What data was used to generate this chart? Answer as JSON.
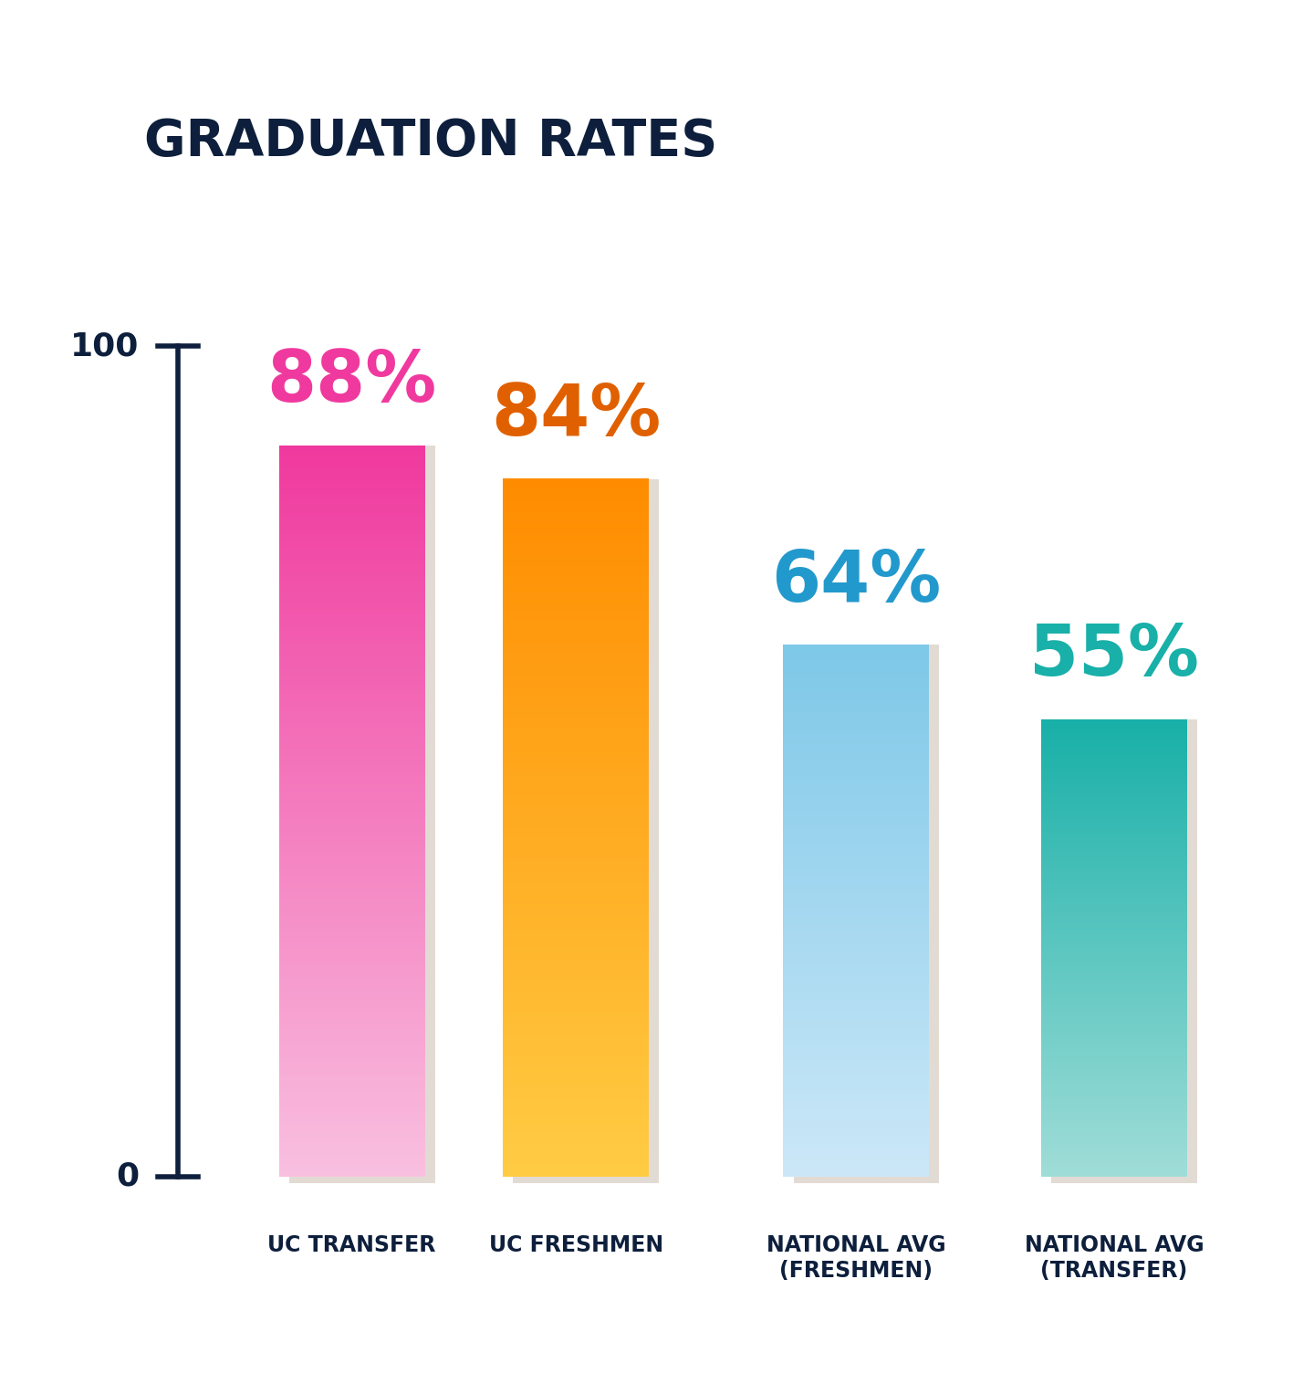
{
  "title": "GRADUATION RATES",
  "title_color": "#0d1f3c",
  "title_fontsize": 40,
  "background_color": "#ffffff",
  "categories": [
    "UC TRANSFER",
    "UC FRESHMEN",
    "NATIONAL AVG\n(FRESHMEN)",
    "NATIONAL AVG\n(TRANSFER)"
  ],
  "values": [
    88,
    84,
    64,
    55
  ],
  "bar_top_colors": [
    "#f0399e",
    "#ff8c00",
    "#7ec8e8",
    "#18b0a8"
  ],
  "bar_bottom_colors": [
    "#f9c0e0",
    "#ffcc44",
    "#cce8f8",
    "#a0ddd8"
  ],
  "label_colors": [
    "#f0399e",
    "#e06000",
    "#2299cc",
    "#18b0a8"
  ],
  "label_values": [
    "88%",
    "84%",
    "64%",
    "55%"
  ],
  "label_fontsize": 56,
  "xlabel_fontsize": 17,
  "axis_color": "#0d1f3c",
  "ylim": [
    0,
    100
  ],
  "shadow_color": "#e2dbd4",
  "y_tick_label_100": "100",
  "y_tick_label_0": "0",
  "ytick_fontsize": 26
}
